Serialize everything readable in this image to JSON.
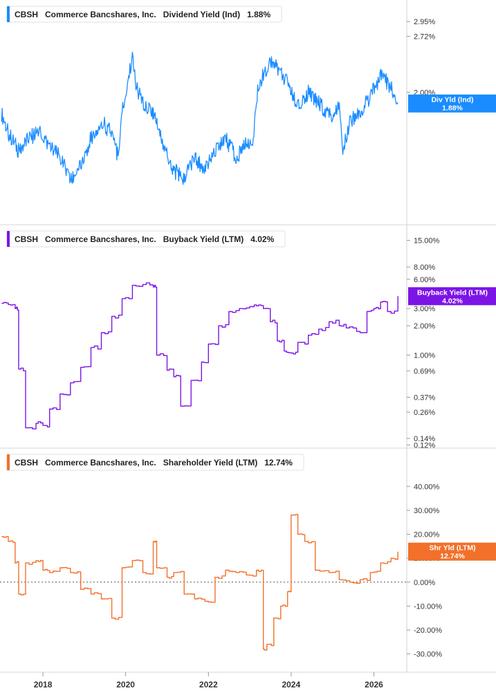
{
  "chart_data": [
    {
      "type": "line",
      "legend": {
        "ticker": "CBSH",
        "company": "Commerce Bancshares, Inc.",
        "metric": "Dividend Yield (Ind)",
        "value": "1.88%",
        "color": "#1a8cff"
      },
      "badge": {
        "line1": "Div Yld (Ind)",
        "line2": "1.88%",
        "color": "#1a8cff"
      },
      "y_scale": "log",
      "ylim": [
        1.05,
        3.1
      ],
      "y_ticks": [
        {
          "value": 2.95,
          "label": "2.95%"
        },
        {
          "value": 2.72,
          "label": "2.72%"
        },
        {
          "value": 2.0,
          "label": "2.00%"
        }
      ],
      "x": [
        "2017-01",
        "2017-03",
        "2017-06",
        "2017-09",
        "2017-12",
        "2018-03",
        "2018-06",
        "2018-09",
        "2018-12",
        "2019-03",
        "2019-06",
        "2019-09",
        "2019-11",
        "2019-12",
        "2020-01",
        "2020-03",
        "2020-04",
        "2020-06",
        "2020-09",
        "2020-12",
        "2021-03",
        "2021-06",
        "2021-09",
        "2021-12",
        "2022-03",
        "2022-06",
        "2022-09",
        "2022-12",
        "2023-02",
        "2023-03",
        "2023-05",
        "2023-07",
        "2023-09",
        "2023-12",
        "2024-03",
        "2024-06",
        "2024-09",
        "2024-12",
        "2025-03",
        "2025-04",
        "2025-06",
        "2025-09",
        "2025-12",
        "2026-03",
        "2026-06",
        "2026-08"
      ],
      "y": [
        1.78,
        1.6,
        1.45,
        1.55,
        1.62,
        1.48,
        1.4,
        1.22,
        1.35,
        1.55,
        1.7,
        1.6,
        1.38,
        1.85,
        1.95,
        2.45,
        2.05,
        1.9,
        1.8,
        1.5,
        1.3,
        1.25,
        1.4,
        1.3,
        1.45,
        1.55,
        1.4,
        1.5,
        1.55,
        1.95,
        2.2,
        2.4,
        2.3,
        2.1,
        1.85,
        2.0,
        1.9,
        1.75,
        1.85,
        1.45,
        1.7,
        1.8,
        1.95,
        2.2,
        2.05,
        1.88
      ]
    },
    {
      "type": "line",
      "legend": {
        "ticker": "CBSH",
        "company": "Commerce Bancshares, Inc.",
        "metric": "Buyback Yield (LTM)",
        "value": "4.02%",
        "color": "#7c14e6"
      },
      "badge": {
        "line1": "Buyback Yield (LTM)",
        "line2": "4.02%",
        "color": "#7c14e6"
      },
      "y_scale": "log",
      "ylim": [
        0.115,
        17
      ],
      "y_ticks": [
        {
          "value": 15,
          "label": "15.00%"
        },
        {
          "value": 8,
          "label": "8.00%"
        },
        {
          "value": 6,
          "label": "6.00%"
        },
        {
          "value": 3,
          "label": "3.00%"
        },
        {
          "value": 2,
          "label": "2.00%"
        },
        {
          "value": 1,
          "label": "1.00%"
        },
        {
          "value": 0.69,
          "label": "0.69%"
        },
        {
          "value": 0.37,
          "label": "0.37%"
        },
        {
          "value": 0.26,
          "label": "0.26%"
        },
        {
          "value": 0.14,
          "label": "0.14%"
        },
        {
          "value": 0.12,
          "label": "0.12%"
        }
      ],
      "x": [
        "2017-01",
        "2017-03",
        "2017-05",
        "2017-06",
        "2017-08",
        "2017-11",
        "2018-01",
        "2018-03",
        "2018-06",
        "2018-09",
        "2018-12",
        "2019-03",
        "2019-06",
        "2019-09",
        "2019-12",
        "2020-03",
        "2020-06",
        "2020-09",
        "2020-10",
        "2021-01",
        "2021-03",
        "2021-05",
        "2021-08",
        "2021-11",
        "2022-01",
        "2022-04",
        "2022-07",
        "2022-10",
        "2023-01",
        "2023-03",
        "2023-05",
        "2023-07",
        "2023-09",
        "2023-11",
        "2024-01",
        "2024-03",
        "2024-06",
        "2024-09",
        "2024-12",
        "2025-03",
        "2025-05",
        "2025-08",
        "2025-11",
        "2026-01",
        "2026-03",
        "2026-05",
        "2026-08"
      ],
      "y": [
        3.4,
        3.3,
        3.0,
        0.72,
        0.18,
        0.2,
        0.19,
        0.28,
        0.4,
        0.52,
        0.75,
        1.2,
        1.7,
        2.5,
        3.8,
        5.2,
        5.3,
        5.0,
        1.0,
        0.7,
        0.6,
        0.3,
        0.55,
        0.85,
        1.3,
        2.0,
        2.8,
        3.0,
        3.15,
        3.2,
        3.0,
        2.2,
        1.4,
        1.1,
        1.05,
        1.35,
        1.6,
        1.85,
        2.2,
        2.0,
        1.9,
        1.75,
        2.8,
        3.0,
        3.5,
        2.8,
        4.02
      ]
    },
    {
      "type": "line",
      "legend": {
        "ticker": "CBSH",
        "company": "Commerce Bancshares, Inc.",
        "metric": "Shareholder Yield (LTM)",
        "value": "12.74%",
        "color": "#f2702a"
      },
      "badge": {
        "line1": "Shr Yld (LTM)",
        "line2": "12.74%",
        "color": "#f2702a"
      },
      "y_scale": "linear",
      "ylim": [
        -33,
        45
      ],
      "zero_line": true,
      "y_ticks": [
        {
          "value": 40,
          "label": "40.00%"
        },
        {
          "value": 30,
          "label": "30.00%"
        },
        {
          "value": 20,
          "label": "20.00%"
        },
        {
          "value": 10,
          "label": "10.00%"
        },
        {
          "value": 0,
          "label": "0.00%"
        },
        {
          "value": -10,
          "label": "-10.00%"
        },
        {
          "value": -20,
          "label": "-20.00%"
        },
        {
          "value": -30,
          "label": "-30.00%"
        }
      ],
      "x": [
        "2017-01",
        "2017-03",
        "2017-05",
        "2017-06",
        "2017-08",
        "2017-11",
        "2018-01",
        "2018-03",
        "2018-06",
        "2018-09",
        "2018-12",
        "2019-03",
        "2019-06",
        "2019-09",
        "2019-12",
        "2020-03",
        "2020-06",
        "2020-09",
        "2020-10",
        "2021-01",
        "2021-03",
        "2021-06",
        "2021-09",
        "2021-12",
        "2022-03",
        "2022-06",
        "2022-09",
        "2022-12",
        "2023-03",
        "2023-05",
        "2023-06",
        "2023-08",
        "2023-10",
        "2023-12",
        "2024-01",
        "2024-03",
        "2024-05",
        "2024-08",
        "2024-12",
        "2025-03",
        "2025-06",
        "2025-09",
        "2025-12",
        "2026-03",
        "2026-06",
        "2026-08"
      ],
      "y": [
        19,
        17,
        8,
        -5,
        8,
        9,
        5,
        4,
        6,
        4,
        -3,
        -5,
        -7,
        -15,
        6,
        9,
        4,
        17,
        6,
        2,
        4,
        -5,
        -7,
        -8,
        2,
        5,
        4,
        3,
        5,
        -28,
        -26,
        -15,
        -10,
        -4,
        28,
        20,
        17,
        5,
        4,
        1,
        0,
        1,
        4,
        8,
        10,
        12.74
      ]
    }
  ],
  "x_axis": {
    "ticks": [
      {
        "date": "2018-01",
        "label": "2018"
      },
      {
        "date": "2020-01",
        "label": "2020"
      },
      {
        "date": "2022-01",
        "label": "2022"
      },
      {
        "date": "2024-01",
        "label": "2024"
      },
      {
        "date": "2026-01",
        "label": "2026"
      }
    ]
  }
}
